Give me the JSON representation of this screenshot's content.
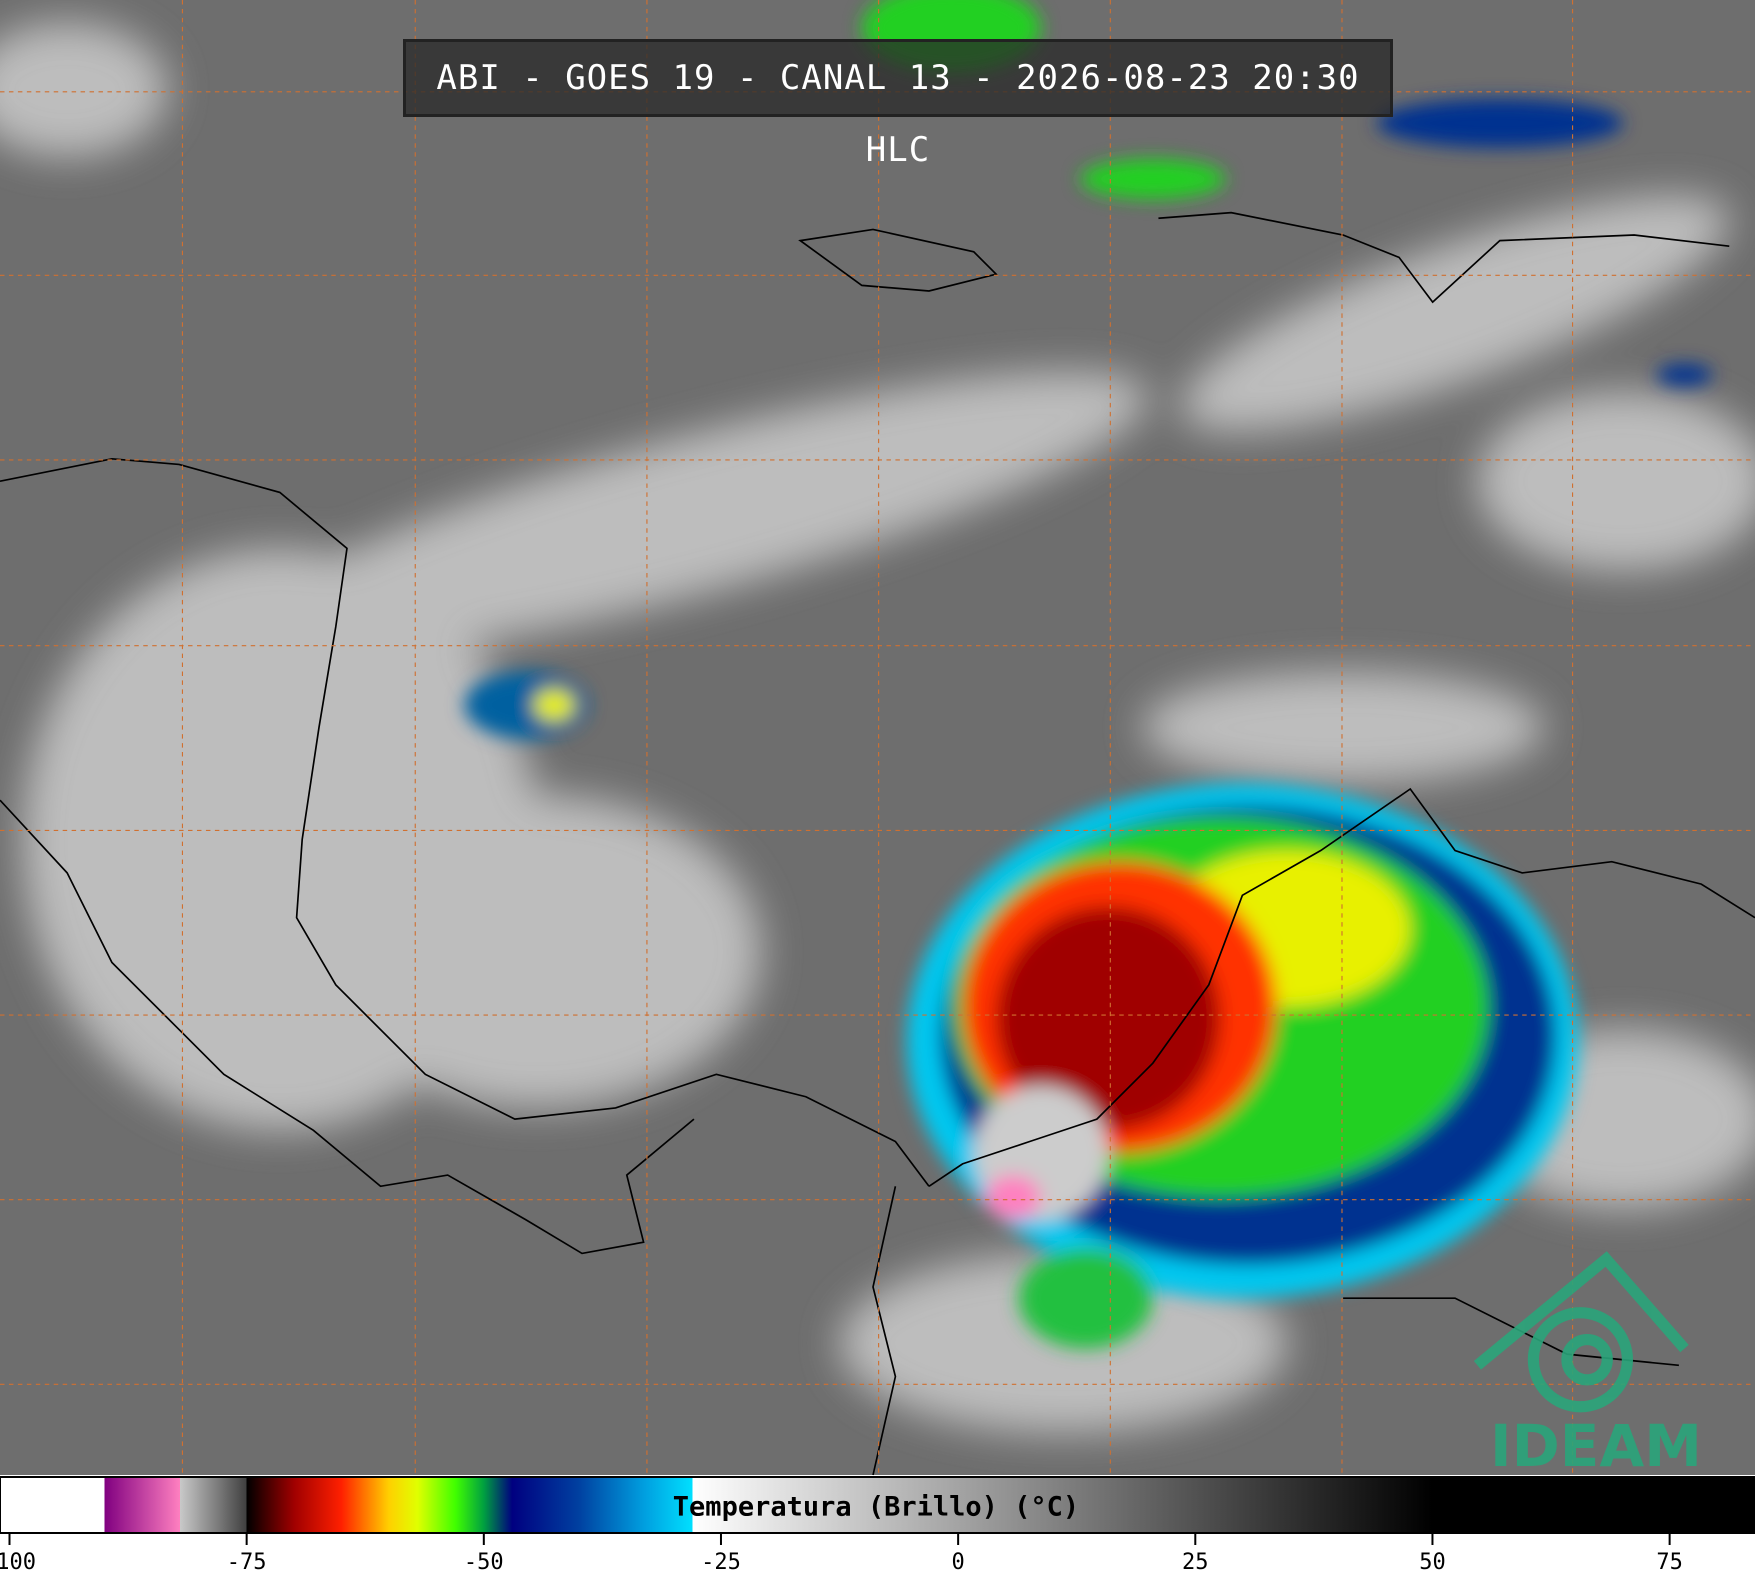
{
  "header": {
    "title": "ABI - GOES 19 - CANAL 13 - 2026-08-23 20:30 HLC"
  },
  "logo": {
    "text": "IDEAM"
  },
  "colorbar": {
    "label": "Temperatura (Brillo) (°C)",
    "lim": [
      -101,
      84
    ],
    "ticks": [
      -100,
      -75,
      -50,
      -25,
      0,
      25,
      50,
      75
    ],
    "colormap": [
      {
        "value": -101,
        "color": "#ffffff"
      },
      {
        "value": -90,
        "color": "#ffffff"
      },
      {
        "value": -90,
        "color": "#800080"
      },
      {
        "value": -82,
        "color": "#ff80c0"
      },
      {
        "value": -82,
        "color": "#c8c8c8"
      },
      {
        "value": -75,
        "color": "#404040"
      },
      {
        "value": -75,
        "color": "#000000"
      },
      {
        "value": -70,
        "color": "#a00000"
      },
      {
        "value": -65,
        "color": "#ff2000"
      },
      {
        "value": -60,
        "color": "#ffd000"
      },
      {
        "value": -57,
        "color": "#e0ff00"
      },
      {
        "value": -53,
        "color": "#40ff00"
      },
      {
        "value": -50,
        "color": "#00a040"
      },
      {
        "value": -47,
        "color": "#000080"
      },
      {
        "value": -40,
        "color": "#0040a0"
      },
      {
        "value": -33,
        "color": "#00a0e0"
      },
      {
        "value": -28,
        "color": "#00e0ff"
      },
      {
        "value": -28,
        "color": "#ffffff"
      },
      {
        "value": 50,
        "color": "#000000"
      },
      {
        "value": 84,
        "color": "#000000"
      }
    ]
  }
}
